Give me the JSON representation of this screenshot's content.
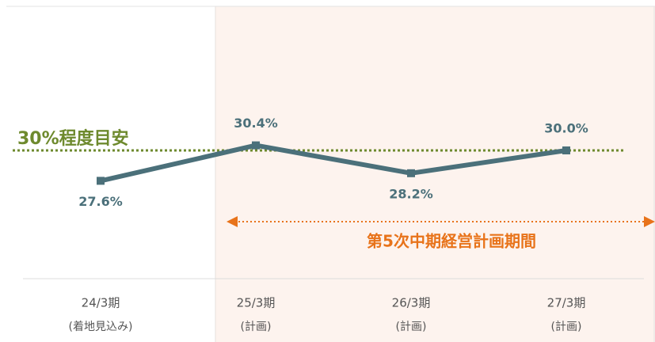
{
  "chart_data": {
    "type": "line",
    "categories": [
      "24/3期",
      "25/3期",
      "26/3期",
      "27/3期"
    ],
    "category_sublabels": [
      "(着地見込み)",
      "(計画)",
      "(計画)",
      "(計画)"
    ],
    "series": [
      {
        "color": "#4b707a",
        "values": [
          27.6,
          30.4,
          28.2,
          30.0
        ],
        "value_labels": [
          "27.6%",
          "30.4%",
          "28.2%",
          "30.0%"
        ]
      }
    ],
    "ylim": [
      24,
      38
    ],
    "reference_line": {
      "value": 30,
      "label": "30%程度目安",
      "color": "#6e8a2e"
    },
    "annotation": {
      "label": "第5次中期経営計画期間",
      "color": "#e8731a"
    }
  }
}
